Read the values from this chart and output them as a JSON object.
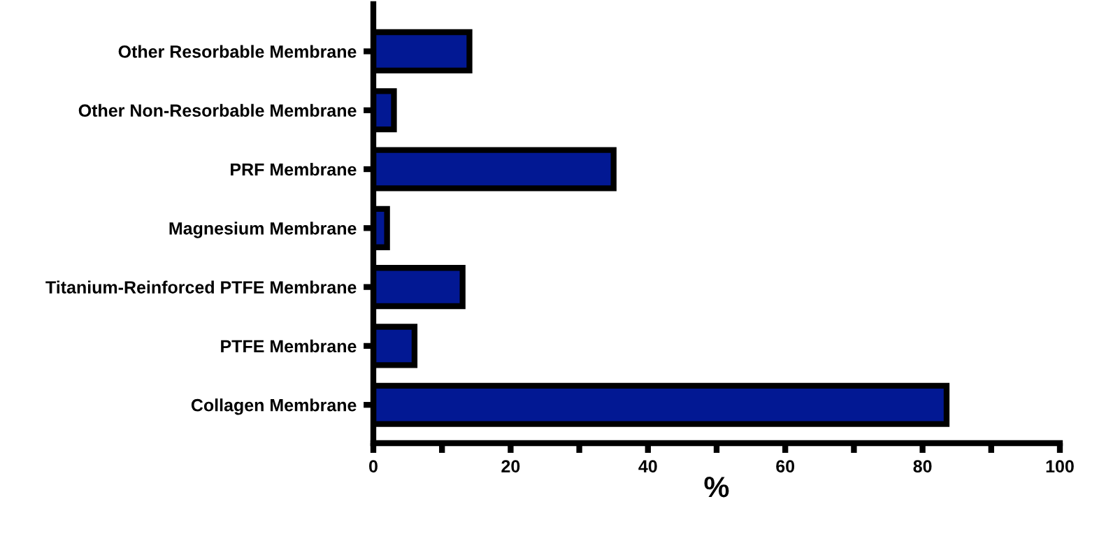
{
  "chart_data": {
    "type": "bar",
    "orientation": "horizontal",
    "xlabel": "%",
    "categories": [
      "Other Resorbable Membrane",
      "Other Non-Resorbable Membrane",
      "PRF Membrane",
      "Magnesium Membrane",
      "Titanium-Reinforced PTFE Membrane",
      "PTFE Membrane",
      "Collagen Membrane"
    ],
    "values": [
      14,
      3,
      35,
      2,
      13,
      6,
      83.5
    ],
    "color": "#021893",
    "xlim": [
      0,
      100
    ],
    "xticks": [
      0,
      {
        "value": 10,
        "label": null
      },
      20,
      {
        "value": 30,
        "label": null
      },
      40,
      {
        "value": 50,
        "label": null
      },
      60,
      {
        "value": 70,
        "label": null
      },
      80,
      {
        "value": 90,
        "label": null
      },
      100
    ],
    "grid": false
  }
}
